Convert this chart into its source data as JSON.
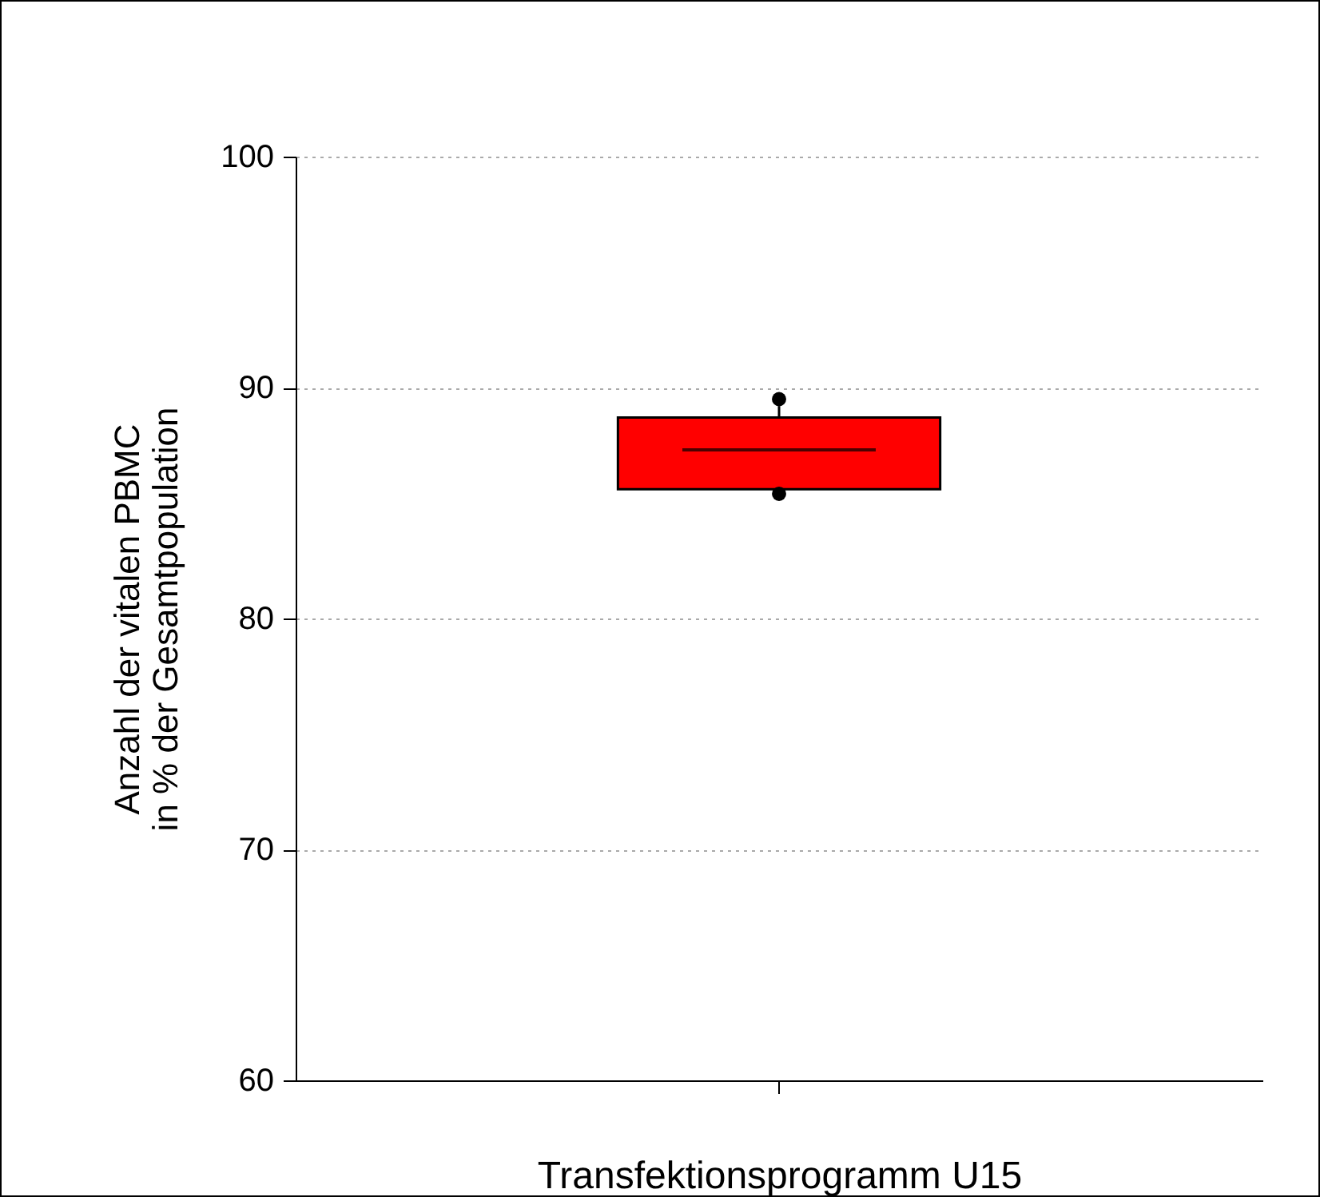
{
  "chart_data": {
    "type": "box",
    "xlabel": "Transfektionsprogramm U15",
    "ylabel": "Anzahl der vitalen PBMC\nin % der Gesamtpopulation",
    "categories": [
      null
    ],
    "series": [
      {
        "color": "#ff0000",
        "boxes": [
          {
            "low": 85.6,
            "q1": 85.6,
            "median": 87.3,
            "q3": 88.7,
            "high": 89.2,
            "outliers": [
              89.5,
              85.4
            ]
          }
        ]
      }
    ],
    "ylim": [
      60,
      100
    ],
    "yticks": [
      60,
      70,
      80,
      90,
      100
    ],
    "grid": "y",
    "marker": "circle"
  }
}
